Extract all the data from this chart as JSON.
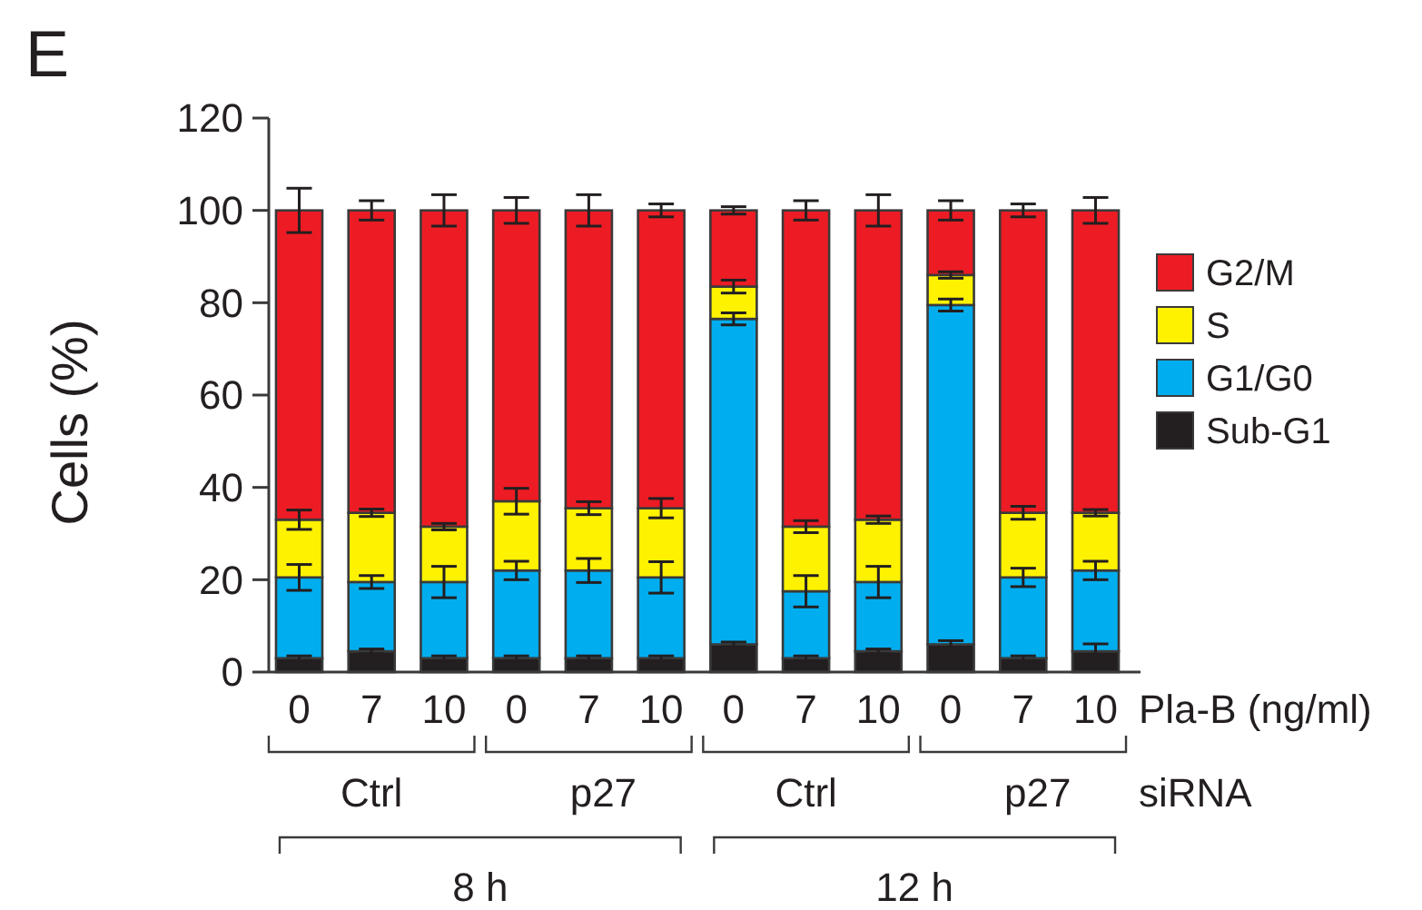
{
  "chart_data": {
    "type": "bar",
    "stacked": true,
    "ylabel": "Cells (%)",
    "categories": [
      "0",
      "7",
      "10",
      "0",
      "7",
      "10",
      "0",
      "7",
      "10",
      "0",
      "7",
      "10"
    ],
    "ylim": [
      0,
      120
    ],
    "yticks": [
      0,
      20,
      40,
      60,
      80,
      100,
      120
    ],
    "grid": false,
    "legend": "right",
    "series": [
      {
        "name": "Sub-G1",
        "color": "#231f20",
        "values": [
          3,
          4.5,
          3,
          3,
          3,
          3,
          6,
          3,
          4.5,
          6,
          3,
          4.5
        ],
        "errors": [
          0.5,
          0.5,
          0.5,
          0.5,
          0.5,
          0.5,
          0.5,
          0.5,
          0.5,
          0.8,
          0.5,
          1.6
        ]
      },
      {
        "name": "G1/G0",
        "color": "#00aeef",
        "values": [
          17.5,
          15,
          16.5,
          19,
          19,
          17.5,
          70.5,
          14.5,
          15,
          73.5,
          17.5,
          17.5
        ],
        "errors": [
          2.8,
          1.4,
          3.4,
          2,
          2.6,
          3.4,
          1.3,
          3.4,
          3.4,
          1.3,
          2,
          2
        ]
      },
      {
        "name": "S",
        "color": "#fff200",
        "values": [
          12.5,
          15,
          12,
          15,
          13.5,
          15,
          7,
          14,
          13.5,
          6.5,
          14,
          12.5
        ],
        "errors": [
          2.1,
          0.8,
          0.7,
          2.8,
          1.4,
          2.1,
          1.4,
          1.3,
          0.8,
          0.7,
          1.4,
          0.7
        ]
      },
      {
        "name": "G2/M",
        "color": "#ed1c24",
        "values": [
          67,
          65.5,
          68.5,
          63,
          64.5,
          64.5,
          16.5,
          68.5,
          67,
          14,
          65.5,
          65.5
        ],
        "errors": [
          4.8,
          2.1,
          3.4,
          2.8,
          3.4,
          1.4,
          0.8,
          2.1,
          3.4,
          2.1,
          1.4,
          2.8
        ]
      }
    ],
    "annotations": [
      "E",
      "Pla-B (ng/ml)",
      "siRNA",
      "Ctrl",
      "p27",
      "Ctrl",
      "p27",
      "8 h",
      "12 h"
    ]
  }
}
